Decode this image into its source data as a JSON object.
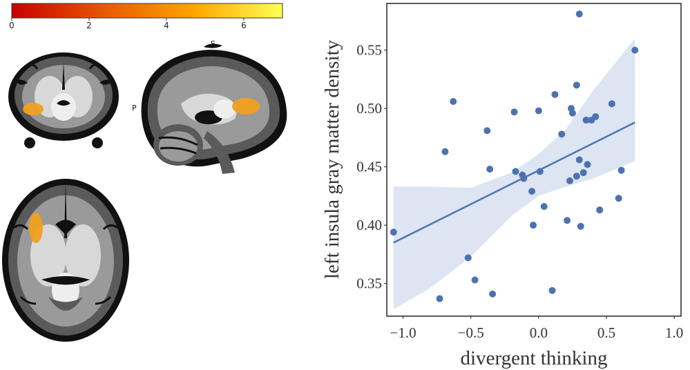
{
  "colorbar": {
    "ticks": [
      {
        "value": 0,
        "label": "0"
      },
      {
        "value": 2,
        "label": "2"
      },
      {
        "value": 4,
        "label": "4"
      },
      {
        "value": 6,
        "label": "6"
      }
    ],
    "range": [
      0,
      7
    ],
    "colors": [
      "#c80000",
      "#e85a00",
      "#ffa800",
      "#ffff55"
    ]
  },
  "brain": {
    "orientation_superior": "S",
    "orientation_posterior": "P",
    "gray_colors": [
      "#111111",
      "#5a5a5a",
      "#9a9a9a",
      "#d8d8d8",
      "#eeeeee"
    ],
    "cluster_color": "#f0a020"
  },
  "chart_data": {
    "type": "scatter",
    "title": "",
    "xlabel": "divergent thinking",
    "ylabel": "left insula gray matter density",
    "xlim": [
      -1.12,
      1.05
    ],
    "ylim": [
      0.322,
      0.59
    ],
    "xticks": [
      {
        "value": -1.0,
        "label": "−1.0"
      },
      {
        "value": -0.5,
        "label": "−0.5"
      },
      {
        "value": 0.0,
        "label": "0.0"
      },
      {
        "value": 0.5,
        "label": "0.5"
      },
      {
        "value": 1.0,
        "label": "1.0"
      }
    ],
    "yticks": [
      {
        "value": 0.35,
        "label": "0.35"
      },
      {
        "value": 0.4,
        "label": "0.40"
      },
      {
        "value": 0.45,
        "label": "0.45"
      },
      {
        "value": 0.5,
        "label": "0.50"
      },
      {
        "value": 0.55,
        "label": "0.55"
      }
    ],
    "grid": false,
    "points": [
      {
        "x": -1.07,
        "y": 0.394
      },
      {
        "x": -0.73,
        "y": 0.337
      },
      {
        "x": -0.69,
        "y": 0.463
      },
      {
        "x": -0.63,
        "y": 0.506
      },
      {
        "x": -0.52,
        "y": 0.372
      },
      {
        "x": -0.47,
        "y": 0.353
      },
      {
        "x": -0.38,
        "y": 0.481
      },
      {
        "x": -0.36,
        "y": 0.448
      },
      {
        "x": -0.34,
        "y": 0.341
      },
      {
        "x": -0.18,
        "y": 0.497
      },
      {
        "x": -0.17,
        "y": 0.446
      },
      {
        "x": -0.12,
        "y": 0.443
      },
      {
        "x": -0.11,
        "y": 0.44
      },
      {
        "x": -0.05,
        "y": 0.429
      },
      {
        "x": -0.04,
        "y": 0.4
      },
      {
        "x": 0.0,
        "y": 0.498
      },
      {
        "x": 0.01,
        "y": 0.446
      },
      {
        "x": 0.04,
        "y": 0.416
      },
      {
        "x": 0.1,
        "y": 0.344
      },
      {
        "x": 0.12,
        "y": 0.512
      },
      {
        "x": 0.17,
        "y": 0.478
      },
      {
        "x": 0.21,
        "y": 0.404
      },
      {
        "x": 0.23,
        "y": 0.438
      },
      {
        "x": 0.24,
        "y": 0.5
      },
      {
        "x": 0.25,
        "y": 0.496
      },
      {
        "x": 0.28,
        "y": 0.52
      },
      {
        "x": 0.28,
        "y": 0.442
      },
      {
        "x": 0.3,
        "y": 0.456
      },
      {
        "x": 0.3,
        "y": 0.581
      },
      {
        "x": 0.31,
        "y": 0.399
      },
      {
        "x": 0.33,
        "y": 0.445
      },
      {
        "x": 0.35,
        "y": 0.49
      },
      {
        "x": 0.36,
        "y": 0.452
      },
      {
        "x": 0.39,
        "y": 0.49
      },
      {
        "x": 0.42,
        "y": 0.493
      },
      {
        "x": 0.45,
        "y": 0.413
      },
      {
        "x": 0.54,
        "y": 0.504
      },
      {
        "x": 0.59,
        "y": 0.423
      },
      {
        "x": 0.61,
        "y": 0.447
      },
      {
        "x": 0.71,
        "y": 0.55
      }
    ],
    "regression": {
      "x": [
        -1.07,
        0.71
      ],
      "y": [
        0.385,
        0.488
      ]
    },
    "ci_band": {
      "x": [
        -1.07,
        -0.8,
        -0.5,
        -0.2,
        0.0,
        0.2,
        0.4,
        0.71
      ],
      "upper": [
        0.433,
        0.433,
        0.432,
        0.445,
        0.461,
        0.482,
        0.515,
        0.56
      ],
      "lower": [
        0.328,
        0.346,
        0.373,
        0.408,
        0.425,
        0.433,
        0.44,
        0.455
      ]
    },
    "point_color": "#4c72b0",
    "line_color": "#4c72b0",
    "band_color": "#dde4f2"
  }
}
